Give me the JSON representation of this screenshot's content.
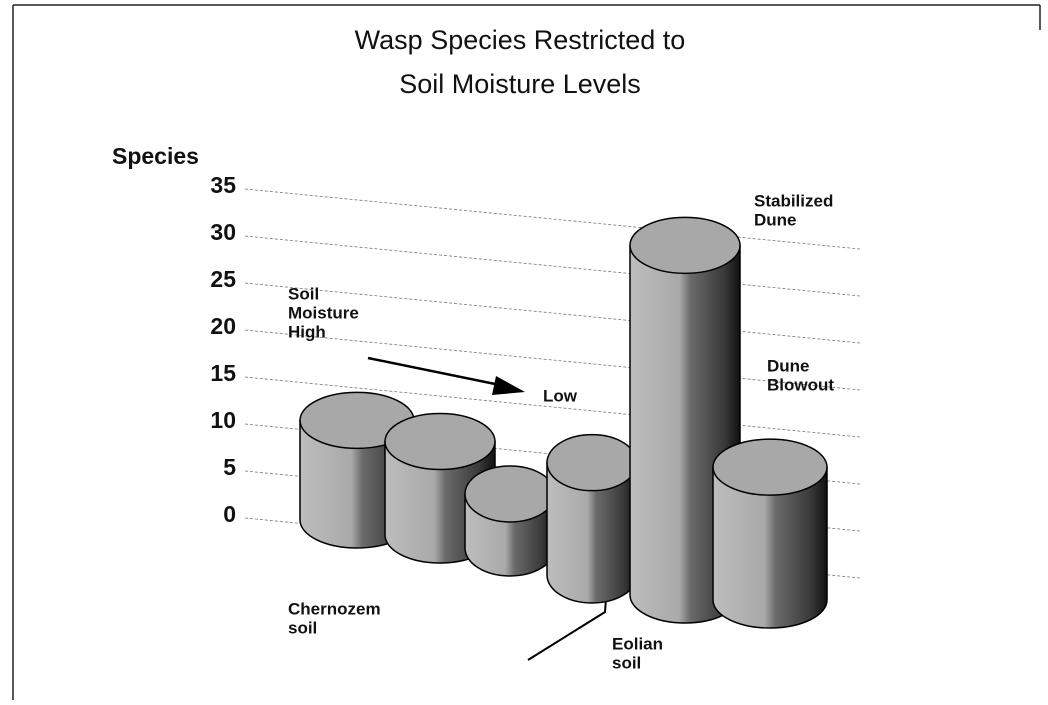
{
  "chart_data": {
    "type": "cylinder-bar",
    "title_lines": [
      "Wasp Species Restricted to",
      "Soil Moisture Levels"
    ],
    "y_axis_label": "Species",
    "categories": [
      null,
      null,
      null,
      null,
      null,
      null
    ],
    "values": [
      10,
      9,
      5,
      10,
      30,
      11
    ],
    "color": "#a8a8a8",
    "ylim": [
      0,
      35
    ],
    "yticks": [
      0,
      5,
      10,
      15,
      20,
      25,
      30,
      35
    ],
    "grid": true,
    "annotations": [
      {
        "lines": [
          "Soil",
          "Moisture",
          "High"
        ]
      },
      {
        "lines": [
          "Low"
        ]
      },
      {
        "lines": [
          "Stabilized",
          "Dune"
        ]
      },
      {
        "lines": [
          "Dune",
          "Blowout"
        ]
      },
      {
        "lines": [
          "Chernozem",
          "soil"
        ]
      },
      {
        "lines": [
          "Eolian",
          "soil"
        ]
      }
    ]
  }
}
